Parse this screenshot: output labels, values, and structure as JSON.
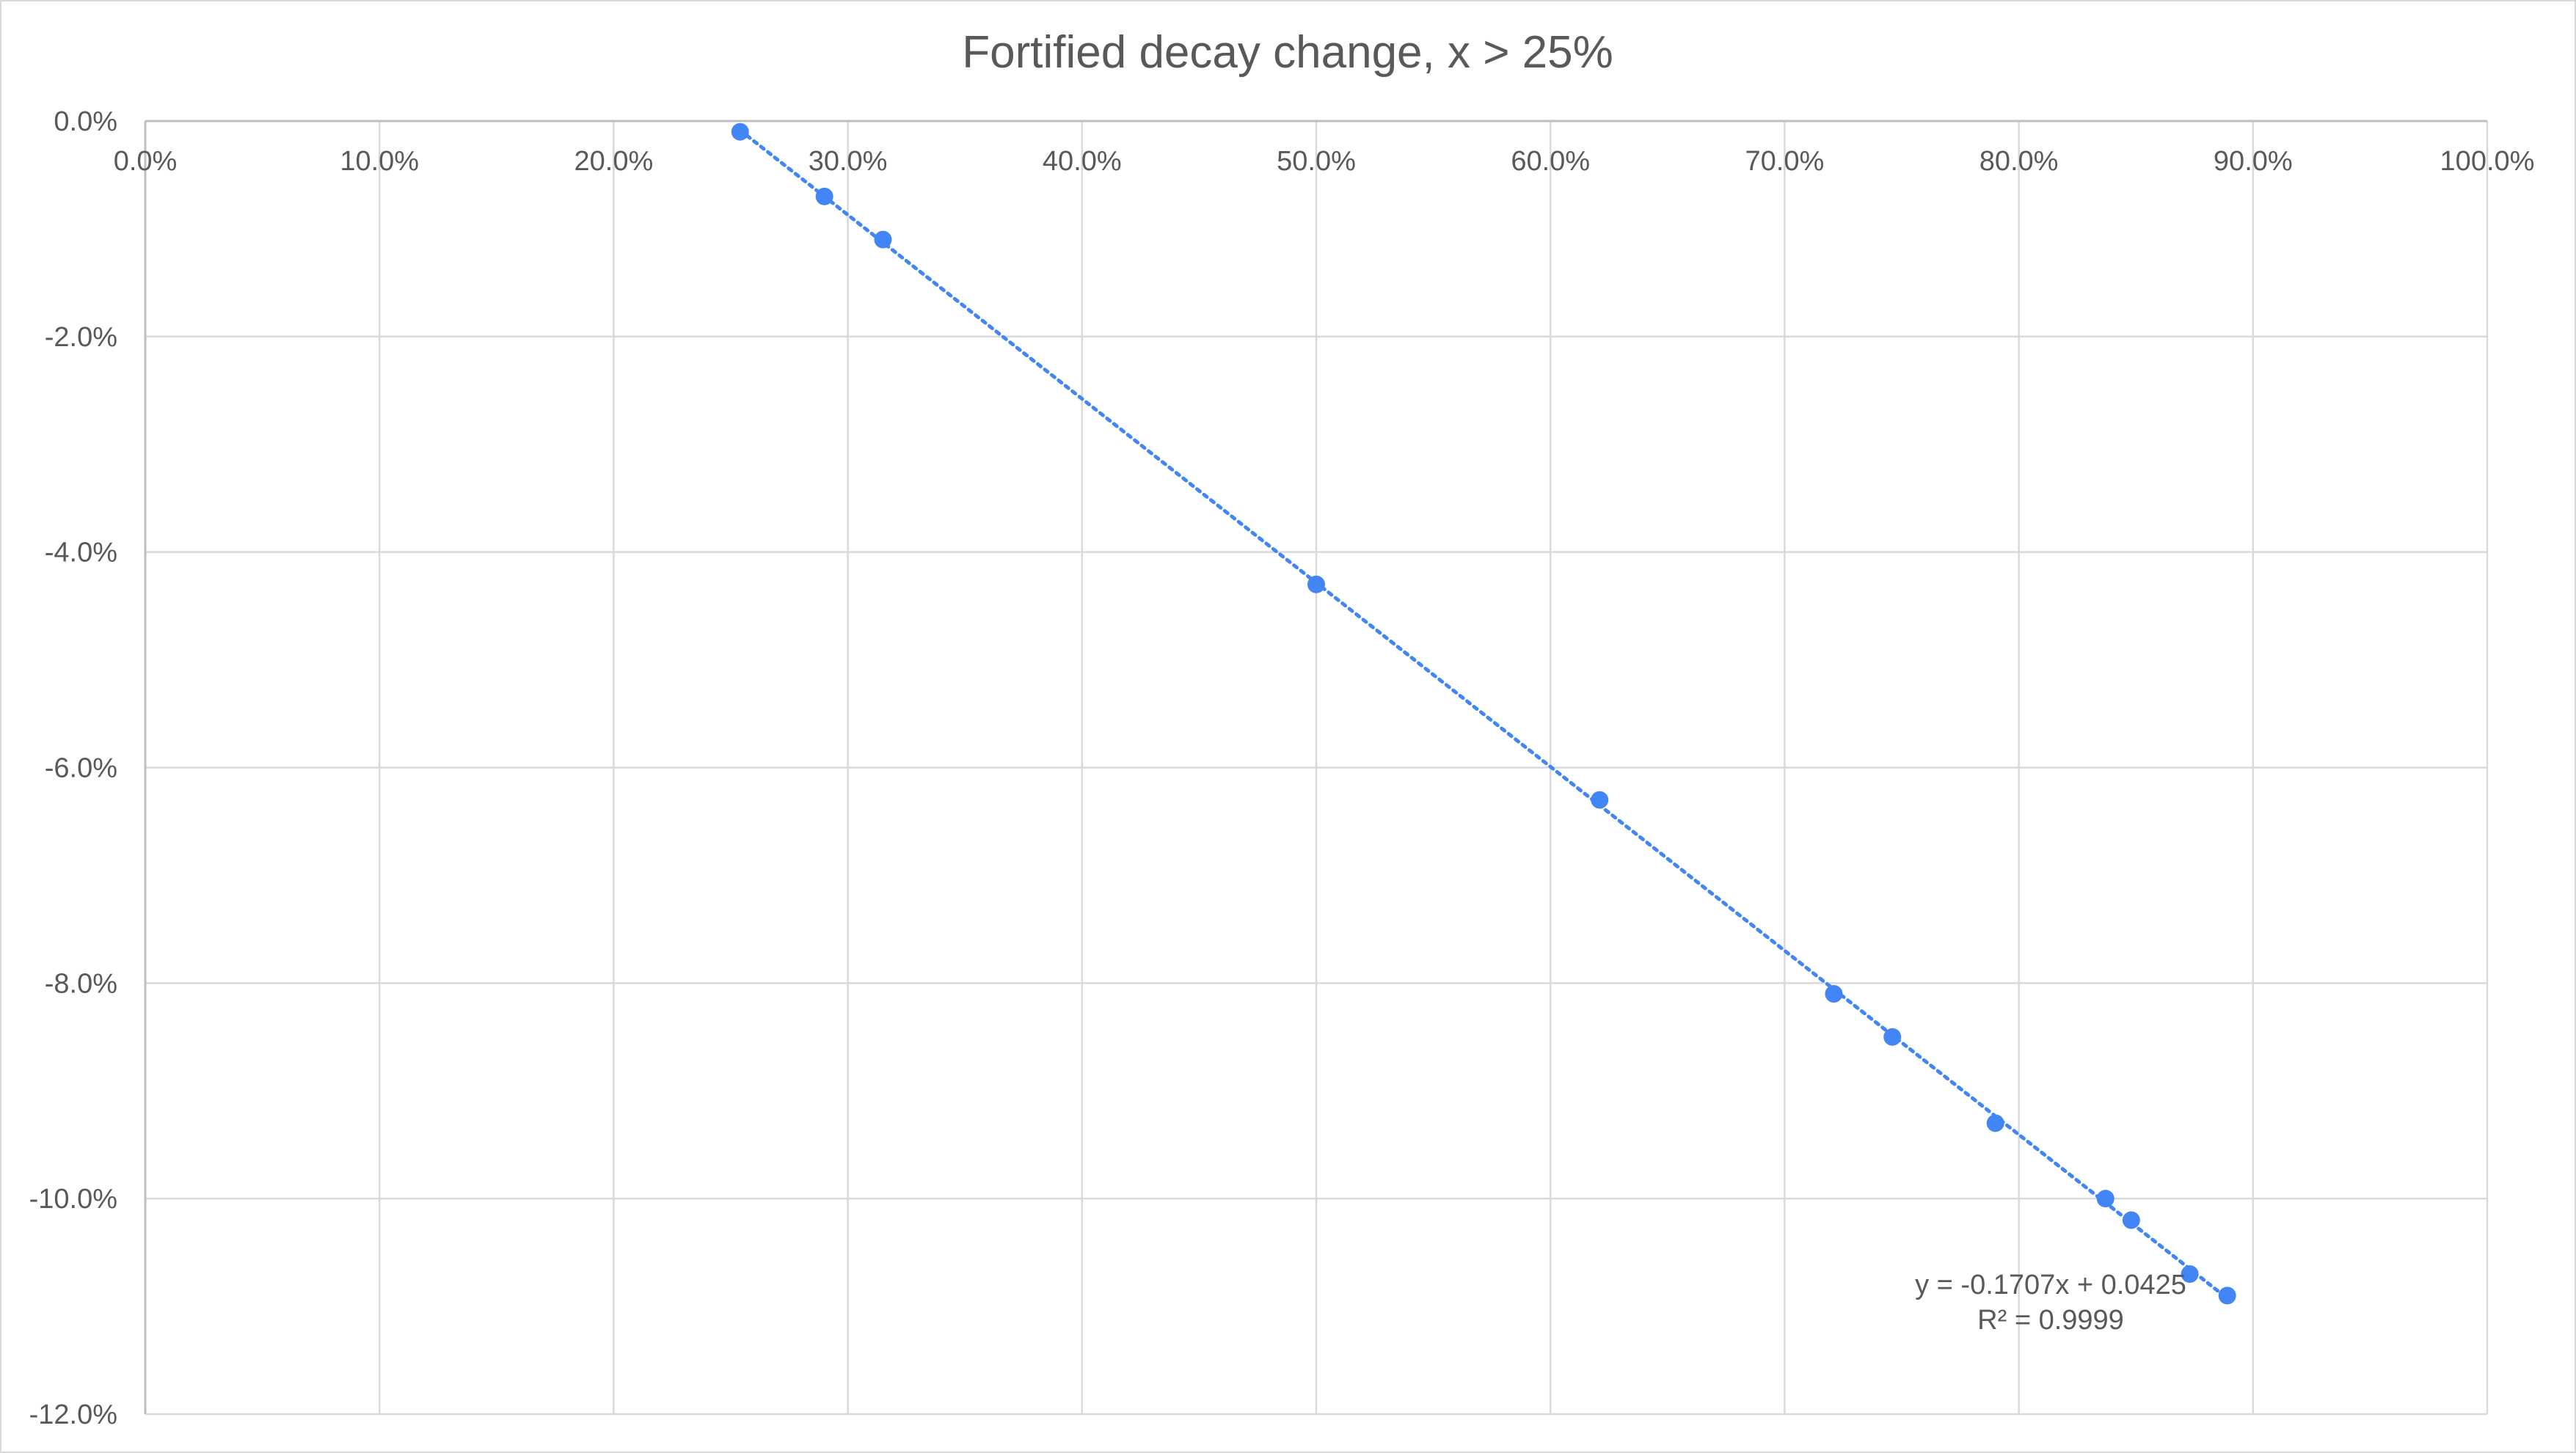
{
  "chart_data": {
    "type": "scatter",
    "title": "Fortified decay change, x > 25%",
    "xlabel": "",
    "ylabel": "",
    "xlim": [
      0,
      1
    ],
    "ylim": [
      -0.12,
      0
    ],
    "x_ticks": [
      0,
      0.1,
      0.2,
      0.3,
      0.4,
      0.5,
      0.6,
      0.7,
      0.8,
      0.9,
      1.0
    ],
    "x_tick_labels": [
      "0.0%",
      "10.0%",
      "20.0%",
      "30.0%",
      "40.0%",
      "50.0%",
      "60.0%",
      "70.0%",
      "80.0%",
      "90.0%",
      "100.0%"
    ],
    "y_ticks": [
      0,
      -0.02,
      -0.04,
      -0.06,
      -0.08,
      -0.1,
      -0.12
    ],
    "y_tick_labels": [
      "0.0%",
      "-2.0%",
      "-4.0%",
      "-6.0%",
      "-8.0%",
      "-10.0%",
      "-12.0%"
    ],
    "x_axis_position": "top",
    "grid": true,
    "series": [
      {
        "color": "#4285f4",
        "points": [
          {
            "x": 0.254,
            "y": -0.001
          },
          {
            "x": 0.29,
            "y": -0.007
          },
          {
            "x": 0.315,
            "y": -0.011
          },
          {
            "x": 0.5,
            "y": -0.043
          },
          {
            "x": 0.621,
            "y": -0.063
          },
          {
            "x": 0.721,
            "y": -0.081
          },
          {
            "x": 0.746,
            "y": -0.085
          },
          {
            "x": 0.79,
            "y": -0.093
          },
          {
            "x": 0.837,
            "y": -0.1
          },
          {
            "x": 0.848,
            "y": -0.102
          },
          {
            "x": 0.873,
            "y": -0.107
          },
          {
            "x": 0.889,
            "y": -0.109
          }
        ]
      }
    ],
    "trendline": {
      "type": "linear",
      "style": "dotted",
      "color": "#4285f4",
      "slope": -0.1707,
      "intercept": 0.0425,
      "x_range": [
        0.254,
        0.889
      ],
      "equation_label": "y = -0.1707x + 0.0425",
      "r2_label": "R² = 0.9999"
    }
  }
}
